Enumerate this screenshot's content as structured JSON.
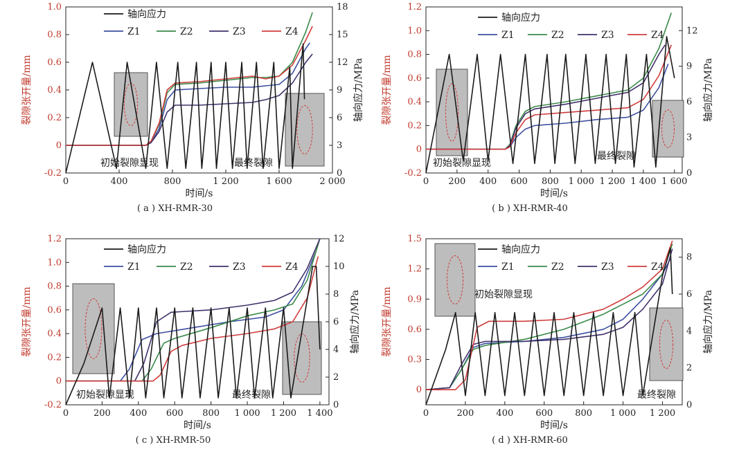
{
  "legend_labels": [
    "轴向应力",
    "Z1",
    "Z2",
    "Z3",
    "Z4"
  ],
  "annotations": {
    "initial_crack": "初始裂隙显现",
    "final_crack": "最终裂隙"
  },
  "colors": {
    "stress": "#1a1a1a",
    "Z1": "#3d4fa0",
    "Z2": "#3a8a4a",
    "Z3": "#40306a",
    "Z4": "#d03c3c",
    "left_axis": "#c0392b",
    "axis": "#222222"
  },
  "chart_data": [
    {
      "type": "line",
      "caption": "( a ) XH-RMR-30",
      "xlabel": "时间/s",
      "ylabel": "裂隙张开量/mm",
      "ylabel2": "轴向应力/MPa",
      "xlim": [
        0,
        2000
      ],
      "ylim": [
        -0.2,
        1.0
      ],
      "y2lim": [
        0,
        18
      ],
      "xticks": [
        0,
        400,
        800,
        1200,
        1600,
        2000
      ],
      "xtick_labels": [
        "0",
        "400",
        "800",
        "1 200",
        "1 600",
        "2 000"
      ],
      "yticks": [
        -0.2,
        0.0,
        0.2,
        0.4,
        0.6,
        0.8,
        1.0
      ],
      "ytick_labels": [
        "-0.2",
        "0",
        "0.2",
        "0.4",
        "0.6",
        "0.8",
        "1.0"
      ],
      "y2ticks": [
        0,
        3,
        6,
        9,
        12,
        15,
        18
      ],
      "y2tick_labels": [
        "0",
        "3",
        "6",
        "9",
        "12",
        "15",
        "18"
      ],
      "series": [
        {
          "name": "Z1",
          "x": [
            0,
            600,
            640,
            700,
            760,
            820,
            1000,
            1200,
            1400,
            1500,
            1600,
            1700,
            1800,
            1830
          ],
          "y": [
            0,
            0,
            0.02,
            0.12,
            0.33,
            0.4,
            0.41,
            0.42,
            0.42,
            0.43,
            0.44,
            0.52,
            0.7,
            0.74
          ]
        },
        {
          "name": "Z2",
          "x": [
            0,
            600,
            640,
            700,
            760,
            820,
            1000,
            1200,
            1400,
            1500,
            1600,
            1700,
            1800,
            1850
          ],
          "y": [
            0,
            0,
            0.03,
            0.15,
            0.38,
            0.44,
            0.45,
            0.47,
            0.49,
            0.49,
            0.5,
            0.6,
            0.82,
            0.96
          ]
        },
        {
          "name": "Z3",
          "x": [
            0,
            600,
            640,
            700,
            760,
            820,
            1000,
            1200,
            1400,
            1500,
            1600,
            1700,
            1800,
            1850
          ],
          "y": [
            0,
            0,
            0.02,
            0.1,
            0.24,
            0.29,
            0.29,
            0.3,
            0.31,
            0.33,
            0.36,
            0.45,
            0.6,
            0.66
          ]
        },
        {
          "name": "Z4",
          "x": [
            0,
            600,
            640,
            700,
            760,
            820,
            1000,
            1200,
            1400,
            1500,
            1600,
            1700,
            1800,
            1850
          ],
          "y": [
            0,
            0,
            0.03,
            0.16,
            0.4,
            0.45,
            0.46,
            0.48,
            0.5,
            0.48,
            0.5,
            0.58,
            0.76,
            0.86
          ]
        },
        {
          "name": "轴向应力",
          "axis": "right",
          "x": [
            0,
            200,
            380,
            460,
            600,
            680,
            760,
            840,
            900,
            980,
            1020,
            1090,
            1130,
            1200,
            1250,
            1320,
            1360,
            1430,
            1480,
            1560,
            1600,
            1680,
            1700,
            1780,
            1790
          ],
          "y": [
            0,
            12,
            0.5,
            12,
            0.5,
            12,
            0.5,
            12,
            0.5,
            12,
            0.5,
            12,
            0.5,
            12,
            0.5,
            12,
            0.5,
            12,
            0.5,
            12,
            0.5,
            11.5,
            0.5,
            14,
            8
          ]
        }
      ]
    },
    {
      "type": "line",
      "caption": "( b ) XH-RMR-40",
      "xlabel": "时间/s",
      "ylabel": "裂隙张开量/mm",
      "ylabel2": "轴向应力/MPa",
      "xlim": [
        0,
        1650
      ],
      "ylim": [
        -0.2,
        1.2
      ],
      "y2lim": [
        0,
        14
      ],
      "xticks": [
        0,
        200,
        400,
        600,
        800,
        1000,
        1200,
        1400,
        1600
      ],
      "xtick_labels": [
        "0",
        "200",
        "400",
        "600",
        "800",
        "1 000",
        "1 200",
        "1 400",
        "1 600"
      ],
      "yticks": [
        -0.2,
        0.0,
        0.2,
        0.4,
        0.6,
        0.8,
        1.0,
        1.2
      ],
      "ytick_labels": [
        "-0.2",
        "0",
        "0.2",
        "0.4",
        "0.6",
        "0.8",
        "1.0",
        "1.2"
      ],
      "y2ticks": [
        0,
        3,
        6,
        9,
        12
      ],
      "y2tick_labels": [
        "0",
        "3",
        "6",
        "9",
        "12"
      ],
      "series": [
        {
          "name": "Z1",
          "x": [
            0,
            510,
            540,
            580,
            640,
            700,
            900,
            1100,
            1300,
            1400,
            1500,
            1560
          ],
          "y": [
            0,
            0,
            0.02,
            0.1,
            0.17,
            0.2,
            0.22,
            0.25,
            0.27,
            0.33,
            0.52,
            0.72
          ]
        },
        {
          "name": "Z2",
          "x": [
            0,
            510,
            540,
            580,
            640,
            700,
            900,
            1100,
            1300,
            1400,
            1500,
            1580
          ],
          "y": [
            0,
            0,
            0.04,
            0.2,
            0.32,
            0.36,
            0.4,
            0.45,
            0.5,
            0.6,
            0.85,
            1.15
          ]
        },
        {
          "name": "Z3",
          "x": [
            0,
            510,
            540,
            580,
            640,
            700,
            900,
            1100,
            1300,
            1400,
            1500,
            1540
          ],
          "y": [
            0,
            0,
            0.03,
            0.18,
            0.3,
            0.34,
            0.38,
            0.43,
            0.48,
            0.56,
            0.8,
            0.88
          ]
        },
        {
          "name": "Z4",
          "x": [
            0,
            510,
            540,
            580,
            640,
            700,
            900,
            1100,
            1300,
            1400,
            1500,
            1580
          ],
          "y": [
            0,
            0,
            0.02,
            0.14,
            0.25,
            0.29,
            0.31,
            0.33,
            0.35,
            0.42,
            0.62,
            0.88
          ]
        },
        {
          "name": "轴向应力",
          "axis": "right",
          "x": [
            0,
            150,
            240,
            330,
            400,
            480,
            560,
            640,
            700,
            780,
            830,
            900,
            960,
            1030,
            1090,
            1160,
            1220,
            1290,
            1340,
            1420,
            1480,
            1550,
            1600
          ],
          "y": [
            0,
            10,
            1,
            10,
            1,
            10,
            0.8,
            10,
            0.8,
            10,
            0.8,
            10,
            0.8,
            10,
            0.8,
            10,
            0.8,
            10,
            0.5,
            10,
            0.5,
            11.5,
            8
          ]
        }
      ]
    },
    {
      "type": "line",
      "caption": "( c ) XH-RMR-50",
      "xlabel": "时间/s",
      "ylabel": "裂隙张开量/mm",
      "ylabel2": "轴向应力/MPa",
      "xlim": [
        0,
        1450
      ],
      "ylim": [
        -0.2,
        1.2
      ],
      "y2lim": [
        0,
        12
      ],
      "xticks": [
        0,
        200,
        400,
        600,
        800,
        1000,
        1200,
        1400
      ],
      "xtick_labels": [
        "0",
        "200",
        "400",
        "600",
        "800",
        "1 000",
        "1 200",
        "1 400"
      ],
      "yticks": [
        -0.2,
        0.0,
        0.2,
        0.4,
        0.6,
        0.8,
        1.0,
        1.2
      ],
      "ytick_labels": [
        "-0.2",
        "0",
        "0.2",
        "0.4",
        "0.6",
        "0.8",
        "1.0",
        "1.2"
      ],
      "y2ticks": [
        0,
        2,
        4,
        6,
        8,
        10,
        12
      ],
      "y2tick_labels": [
        "0",
        "2",
        "4",
        "6",
        "8",
        "10",
        "12"
      ],
      "series": [
        {
          "name": "Z1",
          "x": [
            0,
            300,
            350,
            420,
            500,
            700,
            900,
            1100,
            1200,
            1300,
            1380
          ],
          "y": [
            0,
            0,
            0.1,
            0.35,
            0.4,
            0.45,
            0.5,
            0.54,
            0.6,
            0.8,
            1.1
          ]
        },
        {
          "name": "Z2",
          "x": [
            0,
            420,
            470,
            540,
            600,
            800,
            1000,
            1150,
            1250,
            1330,
            1400
          ],
          "y": [
            0,
            0,
            0.1,
            0.32,
            0.36,
            0.45,
            0.55,
            0.6,
            0.65,
            0.85,
            1.2
          ]
        },
        {
          "name": "Z3",
          "x": [
            0,
            380,
            430,
            500,
            580,
            800,
            1000,
            1150,
            1250,
            1330,
            1400
          ],
          "y": [
            0,
            0,
            0.15,
            0.5,
            0.58,
            0.6,
            0.64,
            0.68,
            0.75,
            0.95,
            1.2
          ]
        },
        {
          "name": "Z4",
          "x": [
            0,
            480,
            520,
            580,
            640,
            800,
            1000,
            1150,
            1250,
            1330,
            1390
          ],
          "y": [
            0,
            0,
            0.05,
            0.25,
            0.3,
            0.36,
            0.4,
            0.44,
            0.5,
            0.7,
            1.05
          ]
        },
        {
          "name": "轴向应力",
          "axis": "right",
          "x": [
            0,
            100,
            200,
            240,
            300,
            350,
            400,
            440,
            500,
            540,
            600,
            640,
            700,
            740,
            800,
            840,
            900,
            940,
            1000,
            1040,
            1100,
            1140,
            1200,
            1240,
            1360,
            1380,
            1400
          ],
          "y": [
            0,
            3,
            7,
            0.5,
            7,
            0.5,
            7,
            0.5,
            7,
            0.5,
            7,
            0.5,
            7,
            0.5,
            7,
            0.5,
            7,
            0.5,
            7,
            0.5,
            7,
            0.5,
            7,
            0.5,
            10,
            10,
            4
          ]
        }
      ]
    },
    {
      "type": "line",
      "caption": "( d ) XH-RMR-60",
      "xlabel": "时间/s",
      "ylabel": "裂隙张开量/mm",
      "ylabel2": "轴向应力/MPa",
      "xlim": [
        0,
        1300
      ],
      "ylim": [
        -0.15,
        1.5
      ],
      "y2lim": [
        0,
        9
      ],
      "xticks": [
        0,
        200,
        400,
        600,
        800,
        1000,
        1200
      ],
      "xtick_labels": [
        "0",
        "200",
        "400",
        "600",
        "800",
        "1 000",
        "1 200"
      ],
      "yticks": [
        0.0,
        0.3,
        0.6,
        0.9,
        1.2,
        1.5
      ],
      "ytick_labels": [
        "0",
        "0.3",
        "0.6",
        "0.9",
        "1.2",
        "1.5"
      ],
      "y2ticks": [
        0,
        2,
        4,
        6,
        8
      ],
      "y2tick_labels": [
        "0",
        "2",
        "4",
        "6",
        "8"
      ],
      "series": [
        {
          "name": "Z1",
          "x": [
            0,
            120,
            180,
            240,
            300,
            500,
            700,
            900,
            1000,
            1100,
            1200,
            1240
          ],
          "y": [
            0,
            0.02,
            0.2,
            0.42,
            0.46,
            0.48,
            0.52,
            0.6,
            0.7,
            0.9,
            1.15,
            1.3
          ]
        },
        {
          "name": "Z2",
          "x": [
            0,
            120,
            180,
            240,
            300,
            500,
            700,
            900,
            1000,
            1100,
            1200,
            1250
          ],
          "y": [
            0,
            0.02,
            0.2,
            0.4,
            0.44,
            0.5,
            0.6,
            0.75,
            0.85,
            0.95,
            1.15,
            1.45
          ]
        },
        {
          "name": "Z3",
          "x": [
            0,
            120,
            180,
            240,
            300,
            500,
            700,
            900,
            1000,
            1100,
            1200,
            1250
          ],
          "y": [
            0,
            0.02,
            0.25,
            0.45,
            0.48,
            0.48,
            0.5,
            0.55,
            0.62,
            0.8,
            1.05,
            1.4
          ]
        },
        {
          "name": "Z4",
          "x": [
            0,
            150,
            200,
            260,
            320,
            500,
            700,
            900,
            1000,
            1100,
            1200,
            1250
          ],
          "y": [
            0,
            0,
            0.1,
            0.62,
            0.68,
            0.68,
            0.7,
            0.8,
            0.9,
            1.02,
            1.2,
            1.48
          ]
        },
        {
          "name": "轴向应力",
          "axis": "right",
          "x": [
            0,
            100,
            150,
            200,
            250,
            300,
            350,
            400,
            450,
            500,
            550,
            600,
            650,
            700,
            750,
            800,
            850,
            900,
            950,
            1000,
            1060,
            1100,
            1200,
            1240,
            1250
          ],
          "y": [
            0,
            3,
            5,
            0.5,
            5,
            0.5,
            5,
            0.5,
            5,
            0.5,
            5,
            0.5,
            5,
            0.5,
            5,
            0.5,
            5,
            0.5,
            5,
            0.5,
            5,
            0.5,
            7,
            8.5,
            6
          ]
        }
      ]
    }
  ]
}
